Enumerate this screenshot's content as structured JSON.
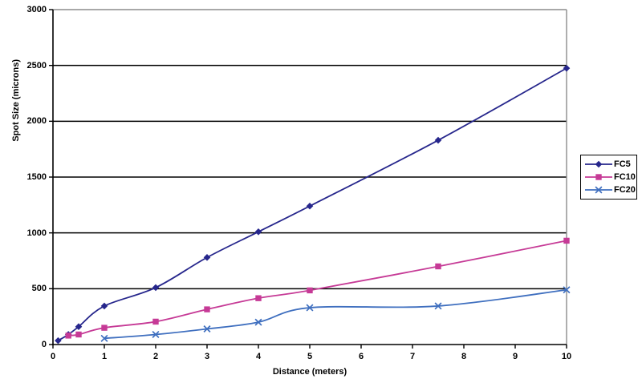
{
  "chart_data": {
    "type": "line",
    "title": "",
    "xlabel": "Distance (meters)",
    "ylabel": "Spot Size (microns)",
    "xlim": [
      0,
      10
    ],
    "ylim": [
      0,
      3000
    ],
    "x_ticks": [
      0,
      1,
      2,
      3,
      4,
      5,
      6,
      7,
      8,
      9,
      10
    ],
    "y_ticks": [
      0,
      500,
      1000,
      1500,
      2000,
      2500,
      3000
    ],
    "grid": "horizontal-black",
    "smoothed": true,
    "legend_position": "right-outside",
    "series": [
      {
        "name": "FC5",
        "color": "#26268c",
        "marker": "diamond",
        "x": [
          0.1,
          0.3,
          0.5,
          1,
          2,
          3,
          4,
          5,
          7.5,
          10
        ],
        "y": [
          35,
          90,
          160,
          345,
          510,
          780,
          1010,
          1240,
          1830,
          2475
        ]
      },
      {
        "name": "FC10",
        "color": "#c63a96",
        "marker": "square",
        "x": [
          0.3,
          0.5,
          1,
          2,
          3,
          4,
          5,
          7.5,
          10
        ],
        "y": [
          80,
          90,
          150,
          205,
          315,
          415,
          485,
          700,
          930
        ]
      },
      {
        "name": "FC20",
        "color": "#3f6fbf",
        "marker": "x",
        "x": [
          1,
          2,
          3,
          4,
          5,
          7.5,
          10
        ],
        "y": [
          55,
          90,
          140,
          200,
          330,
          345,
          490
        ]
      }
    ],
    "colors": {
      "gridline": "#000000",
      "axis": "#000000",
      "plot_border": "#8c8c8c",
      "background": "#ffffff",
      "text": "#000000"
    }
  }
}
